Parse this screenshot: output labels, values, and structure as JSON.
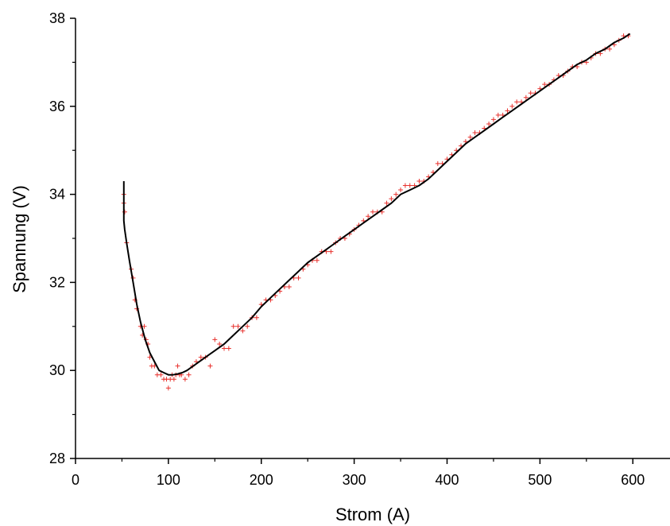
{
  "chart_data": {
    "type": "scatter",
    "xlabel": "Strom (A)",
    "ylabel": "Spannung (V)",
    "xlim": [
      0,
      640
    ],
    "ylim": [
      28,
      38
    ],
    "xticks": [
      0,
      100,
      200,
      300,
      400,
      500,
      600
    ],
    "yticks": [
      28,
      30,
      32,
      34,
      36,
      38
    ],
    "x_tick_labels": [
      "0",
      "100",
      "200",
      "300",
      "400",
      "500",
      "600"
    ],
    "y_tick_labels": [
      "28",
      "30",
      "32",
      "34",
      "36",
      "38"
    ],
    "grid": false,
    "legend": "none",
    "series": [
      {
        "style": "markers",
        "marker": "plus",
        "color": "#e8322e",
        "x": [
          52,
          52,
          53,
          55,
          60,
          62,
          64,
          66,
          70,
          72,
          74,
          76,
          78,
          80,
          82,
          85,
          88,
          92,
          95,
          98,
          100,
          102,
          104,
          106,
          108,
          110,
          112,
          114,
          118,
          122,
          126,
          130,
          135,
          140,
          145,
          150,
          155,
          160,
          165,
          170,
          175,
          180,
          185,
          190,
          195,
          200,
          205,
          210,
          215,
          220,
          225,
          230,
          235,
          240,
          245,
          250,
          255,
          260,
          265,
          270,
          275,
          280,
          285,
          290,
          295,
          300,
          305,
          310,
          315,
          320,
          325,
          330,
          335,
          340,
          345,
          350,
          355,
          360,
          365,
          370,
          375,
          380,
          385,
          390,
          395,
          400,
          405,
          410,
          415,
          420,
          425,
          430,
          435,
          440,
          445,
          450,
          455,
          460,
          465,
          470,
          475,
          480,
          485,
          490,
          495,
          500,
          505,
          510,
          515,
          520,
          525,
          530,
          535,
          540,
          545,
          550,
          555,
          560,
          565,
          570,
          575,
          580,
          585,
          590,
          595
        ],
        "y": [
          34.0,
          33.8,
          33.6,
          32.9,
          32.3,
          32.1,
          31.6,
          31.4,
          31.0,
          30.8,
          31.0,
          30.7,
          30.6,
          30.3,
          30.1,
          30.1,
          29.9,
          29.9,
          29.8,
          29.8,
          29.6,
          29.8,
          29.9,
          29.8,
          29.9,
          30.1,
          29.9,
          29.9,
          29.8,
          29.9,
          30.1,
          30.2,
          30.3,
          30.3,
          30.1,
          30.7,
          30.6,
          30.5,
          30.5,
          31.0,
          31.0,
          30.9,
          31.0,
          31.2,
          31.2,
          31.5,
          31.6,
          31.6,
          31.7,
          31.8,
          31.9,
          31.9,
          32.1,
          32.1,
          32.3,
          32.4,
          32.5,
          32.5,
          32.7,
          32.7,
          32.7,
          32.9,
          33.0,
          33.0,
          33.1,
          33.2,
          33.3,
          33.4,
          33.5,
          33.6,
          33.6,
          33.6,
          33.8,
          33.9,
          34.0,
          34.1,
          34.2,
          34.2,
          34.2,
          34.3,
          34.3,
          34.4,
          34.5,
          34.7,
          34.7,
          34.8,
          34.9,
          35.0,
          35.1,
          35.2,
          35.3,
          35.4,
          35.4,
          35.5,
          35.6,
          35.7,
          35.8,
          35.8,
          35.9,
          36.0,
          36.1,
          36.1,
          36.2,
          36.3,
          36.3,
          36.4,
          36.5,
          36.5,
          36.6,
          36.7,
          36.7,
          36.8,
          36.9,
          36.9,
          37.0,
          37.0,
          37.1,
          37.2,
          37.2,
          37.3,
          37.3,
          37.4,
          37.5,
          37.6,
          37.6
        ]
      },
      {
        "style": "line",
        "color": "#000000",
        "x": [
          52,
          52,
          53,
          55,
          58,
          62,
          66,
          70,
          75,
          80,
          85,
          90,
          95,
          100,
          105,
          110,
          115,
          120,
          130,
          140,
          150,
          160,
          170,
          180,
          190,
          200,
          210,
          220,
          230,
          240,
          250,
          260,
          270,
          280,
          290,
          300,
          310,
          320,
          330,
          340,
          350,
          360,
          370,
          380,
          390,
          400,
          410,
          420,
          430,
          440,
          450,
          460,
          470,
          480,
          490,
          500,
          510,
          520,
          530,
          540,
          550,
          560,
          570,
          580,
          590,
          597
        ],
        "y": [
          34.3,
          33.4,
          33.2,
          32.9,
          32.5,
          32.0,
          31.5,
          31.1,
          30.7,
          30.4,
          30.2,
          30.0,
          29.95,
          29.9,
          29.9,
          29.92,
          29.95,
          30.0,
          30.15,
          30.3,
          30.45,
          30.6,
          30.8,
          31.0,
          31.2,
          31.45,
          31.65,
          31.85,
          32.05,
          32.25,
          32.45,
          32.6,
          32.75,
          32.9,
          33.05,
          33.2,
          33.35,
          33.5,
          33.65,
          33.8,
          34.0,
          34.1,
          34.2,
          34.35,
          34.55,
          34.75,
          34.95,
          35.15,
          35.3,
          35.45,
          35.6,
          35.75,
          35.9,
          36.05,
          36.2,
          36.35,
          36.5,
          36.65,
          36.8,
          36.95,
          37.05,
          37.2,
          37.3,
          37.45,
          37.55,
          37.65
        ]
      }
    ]
  }
}
